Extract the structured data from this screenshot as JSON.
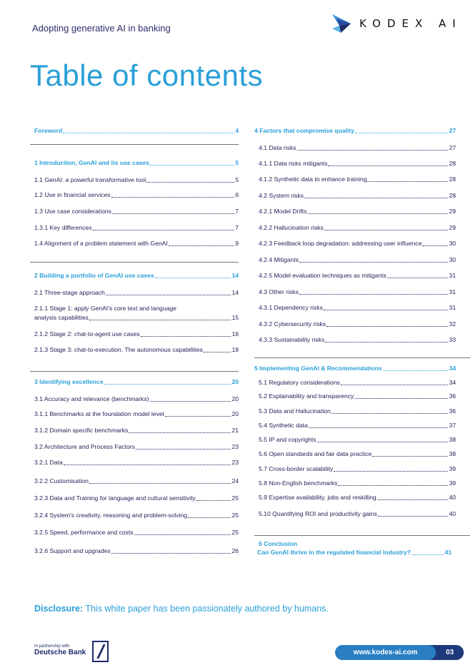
{
  "header": {
    "doc_title": "Adopting generative AI in banking",
    "logo_text": "KODEX AI"
  },
  "page_title": "Table of contents",
  "colors": {
    "accent": "#2a9fd8",
    "text": "#23235a",
    "navy": "#1d2b6b"
  },
  "toc_left": [
    {
      "label": "Foreword",
      "page": "4",
      "head": true
    },
    {
      "label": "1 Introduction, GenAI and its use cases",
      "page": "5",
      "head": true
    },
    {
      "label": "1.1 GenAI: a powerful transformative tool",
      "page": "5"
    },
    {
      "label": "1.2 Use in financial services",
      "page": "6"
    },
    {
      "label": "1.3 Use case considerations",
      "page": "7"
    },
    {
      "label": "1.3.1 Key differences",
      "page": "7"
    },
    {
      "label": "1.4 Alignment of a problem statement with GenAI",
      "page": "9"
    },
    {
      "label": "2 Building a portfolio of GenAI use cases",
      "page": "14",
      "head": true
    },
    {
      "label": "2.1 Three-stage approach",
      "page": "14"
    },
    {
      "label": "2.1.1 Stage 1: apply GenAI's core text and language",
      "label2": "analysis capabilities",
      "page": "15"
    },
    {
      "label": "2.1.2 Stage 2: chat-to-agent use cases",
      "page": "16"
    },
    {
      "label": "2.1.3 Stage 3: chat-to-execution. The autonomous capabilities",
      "page": "18"
    },
    {
      "label": "3 Identifying excellence",
      "page": "20",
      "head": true
    },
    {
      "label": "3.1 Accuracy and relevance (benchmarks)",
      "page": "20"
    },
    {
      "label": "3.1.1 Benchmarks at the foundation model level",
      "page": "20"
    },
    {
      "label": "3.1.2 Domain specific benchmarks",
      "page": "21"
    },
    {
      "label": "3.2 Architecture and Process Factors",
      "page": "23"
    },
    {
      "label": "3.2.1  Data",
      "page": "23"
    },
    {
      "label": "3.2.2 Customisation",
      "page": "24"
    },
    {
      "label": "3.2.3 Data and Training for language and cultural sensitivity",
      "page": "25"
    },
    {
      "label": "3.2.4 System's creativity, reasoning and problem-solving",
      "page": "25"
    },
    {
      "label": "3.2.5 Speed, performance and costs",
      "page": "25"
    },
    {
      "label": "3.2.6 Support and upgrades",
      "page": "26"
    }
  ],
  "toc_right": [
    {
      "label": "4 Factors that compromise quality",
      "page": "27",
      "head": true
    },
    {
      "label": "4.1 Data risks",
      "page": "27"
    },
    {
      "label": "4.1.1 Data risks mitigants",
      "page": "28"
    },
    {
      "label": "4.1.2 Synthetic data to enhance training",
      "page": "28"
    },
    {
      "label": "4.2 System risks",
      "page": "28"
    },
    {
      "label": "4.2.1 Model Drifts",
      "page": "29"
    },
    {
      "label": "4.2.2 Hallucination risks",
      "page": "29"
    },
    {
      "label": "4.2.3 Feedback loop degradation: addressing user influence",
      "page": "30"
    },
    {
      "label": "4.2.4 Mitigants",
      "page": "30"
    },
    {
      "label": "4.2.5 Model evaluation techniques as mitigants",
      "page": "31"
    },
    {
      "label": "4.3 Other risks",
      "page": "31"
    },
    {
      "label": "4.3.1 Dependency risks",
      "page": "31"
    },
    {
      "label": "4.3.2 Cybersecurity risks",
      "page": "32"
    },
    {
      "label": "4.3.3 Sustainability risks",
      "page": "33"
    },
    {
      "label": "5 Implementing GenAI & Recommendations",
      "page": "34",
      "head": true
    },
    {
      "label": "5.1 Regulatory considerations",
      "page": "34"
    },
    {
      "label": "5.2 Explainability and transparency",
      "page": "36"
    },
    {
      "label": "5.3 Data and Hallucination",
      "page": "36"
    },
    {
      "label": "5.4 Synthetic data",
      "page": "37"
    },
    {
      "label": "5.5 IP and copyrights",
      "page": "38"
    },
    {
      "label": "5.6 Open standards and fair data practice",
      "page": "38"
    },
    {
      "label": "5.7 Cross-border scalability",
      "page": "39"
    },
    {
      "label": "5.8 Non-English benchmarks",
      "page": "39"
    },
    {
      "label": "5.9 Expertise availability, jobs and reskilling",
      "page": "40"
    },
    {
      "label": "5.10 Quantifying ROI and productivity gains",
      "page": "40"
    },
    {
      "label": "Can GenAI thrive in the regulated financial industry?",
      "page": "41",
      "head": true
    }
  ],
  "conclusion_heading": "6 Conclusion",
  "disclosure": {
    "label": "Disclosure:",
    "text": " This white paper has been passionately authored by humans."
  },
  "footer": {
    "partner_small": "In partnership with",
    "partner_name": "Deutsche Bank",
    "url": "www.kodex-ai.com",
    "page_number": "03"
  }
}
